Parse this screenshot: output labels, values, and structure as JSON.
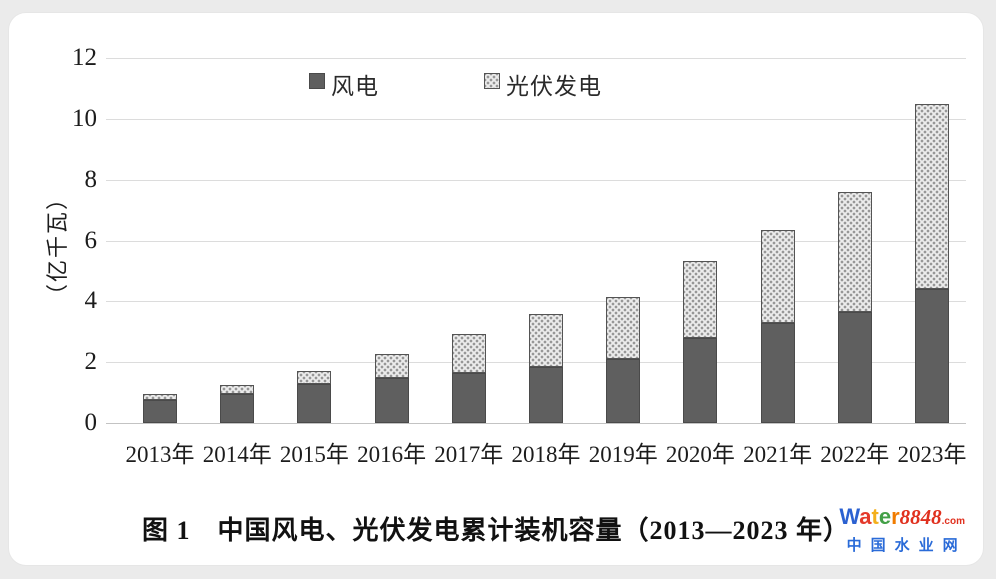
{
  "page": {
    "background": "#ebebeb",
    "card_background": "#ffffff"
  },
  "chart_data": {
    "type": "bar",
    "stacked": true,
    "caption": "图 1　中国风电、光伏发电累计装机容量（2013—2023 年）",
    "ylabel": "（亿千瓦）",
    "ylim": [
      0,
      12
    ],
    "yticks": [
      0,
      2,
      4,
      6,
      8,
      10,
      12
    ],
    "grid": true,
    "legend_position": "top",
    "categories": [
      "2013年",
      "2014年",
      "2015年",
      "2016年",
      "2017年",
      "2018年",
      "2019年",
      "2020年",
      "2021年",
      "2022年",
      "2023年"
    ],
    "series": [
      {
        "key": "wind",
        "name": "风电",
        "color": "#5f5f5f",
        "pattern": "solid",
        "values": [
          0.77,
          0.96,
          1.29,
          1.49,
          1.64,
          1.84,
          2.1,
          2.81,
          3.28,
          3.65,
          4.41
        ]
      },
      {
        "key": "pv",
        "name": "光伏发电",
        "color": "#ececec",
        "pattern": "dot-grid",
        "values": [
          0.19,
          0.28,
          0.43,
          0.77,
          1.3,
          1.74,
          2.04,
          2.53,
          3.06,
          3.93,
          6.09
        ]
      }
    ]
  },
  "watermark": {
    "brand_letters": [
      {
        "ch": "W",
        "color": "#2b61d1"
      },
      {
        "ch": "a",
        "color": "#e4392b"
      },
      {
        "ch": "t",
        "color": "#f3b01c"
      },
      {
        "ch": "e",
        "color": "#43a047"
      },
      {
        "ch": "r",
        "color": "#f07c00"
      }
    ],
    "number": "8848",
    "number_color": "#e0301e",
    "tld": ".com",
    "tld_color": "#e0301e",
    "subtitle": "中国水业网",
    "subtitle_color": "#2a6bd8"
  }
}
